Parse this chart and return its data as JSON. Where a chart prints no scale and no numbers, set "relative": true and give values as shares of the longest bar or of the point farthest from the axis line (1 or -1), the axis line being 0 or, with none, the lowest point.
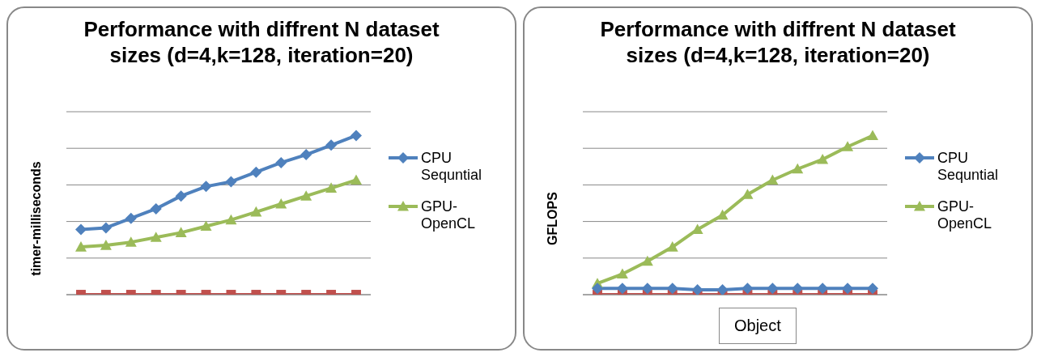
{
  "chart_data": [
    {
      "type": "line",
      "title": "Performance with diffrent N dataset sizes (d=4,k=128, iteration=20)",
      "ylabel": "timer-milliseconds",
      "relative": true,
      "grid": "y",
      "legend": "right",
      "categories": [
        null,
        null,
        null,
        null,
        null,
        null,
        null,
        null,
        null,
        null,
        null,
        null
      ],
      "series": [
        {
          "name": "CPU Sequntial",
          "color": "#4f81bd",
          "marker": "diamond",
          "values": [
            0.41,
            0.42,
            0.48,
            0.54,
            0.62,
            0.68,
            0.71,
            0.77,
            0.83,
            0.88,
            0.94,
            1
          ]
        },
        {
          "name": "GPU-OpenCL",
          "color": "#9bbb59",
          "marker": "triangle",
          "values": [
            0.3,
            0.31,
            0.33,
            0.36,
            0.39,
            0.43,
            0.47,
            0.52,
            0.57,
            0.62,
            0.67,
            0.72
          ]
        },
        {
          "color": "#c0504d",
          "marker": "square",
          "values": [
            0,
            0,
            0,
            0,
            0,
            0,
            0,
            0,
            0,
            0,
            0,
            0
          ]
        }
      ]
    },
    {
      "type": "line",
      "title": "Performance with diffrent N dataset sizes (d=4,k=128, iteration=20)",
      "ylabel": "GFLOPS",
      "xlabel": "Object",
      "relative": true,
      "grid": "y",
      "legend": "right",
      "categories": [
        null,
        null,
        null,
        null,
        null,
        null,
        null,
        null,
        null,
        null,
        null,
        null
      ],
      "series": [
        {
          "name": "CPU Sequntial",
          "color": "#4f81bd",
          "marker": "diamond",
          "values": [
            0.04,
            0.04,
            0.04,
            0.04,
            0.03,
            0.03,
            0.04,
            0.04,
            0.04,
            0.04,
            0.04,
            0.04
          ]
        },
        {
          "name": "GPU-OpenCL",
          "color": "#9bbb59",
          "marker": "triangle",
          "values": [
            0.07,
            0.13,
            0.21,
            0.3,
            0.41,
            0.5,
            0.63,
            0.72,
            0.79,
            0.85,
            0.93,
            1
          ]
        },
        {
          "color": "#c0504d",
          "marker": "square",
          "values": [
            0,
            0,
            0,
            0,
            0,
            0,
            0,
            0,
            0,
            0,
            0,
            0
          ]
        }
      ]
    }
  ]
}
